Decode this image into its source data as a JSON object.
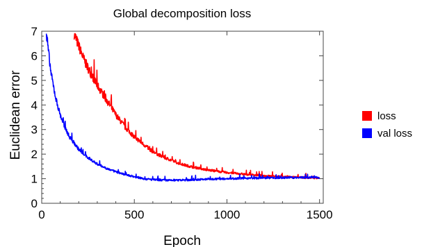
{
  "chart_data": {
    "type": "line",
    "title": "Global decomposition loss",
    "xlabel": "Epoch",
    "ylabel": "Euclidean error",
    "xlim": [
      0,
      1520
    ],
    "ylim": [
      0,
      7
    ],
    "xticks": [
      0,
      500,
      1000,
      1500
    ],
    "yticks": [
      0,
      1,
      2,
      3,
      4,
      5,
      6,
      7
    ],
    "grid": false,
    "legend_position": "right",
    "series": [
      {
        "name": "loss",
        "color": "#ff0000",
        "x": [
          175,
          200,
          225,
          250,
          300,
          350,
          400,
          450,
          500,
          550,
          600,
          650,
          700,
          750,
          800,
          900,
          1000,
          1100,
          1200,
          1300,
          1400,
          1500
        ],
        "y": [
          6.9,
          6.4,
          5.9,
          5.5,
          4.8,
          4.2,
          3.6,
          3.1,
          2.7,
          2.4,
          2.1,
          1.9,
          1.75,
          1.6,
          1.5,
          1.35,
          1.25,
          1.18,
          1.12,
          1.08,
          1.05,
          1.03
        ]
      },
      {
        "name": "val loss",
        "color": "#0000ff",
        "x": [
          25,
          50,
          75,
          100,
          125,
          150,
          200,
          250,
          300,
          350,
          400,
          450,
          500,
          550,
          600,
          700,
          800,
          900,
          1000,
          1100,
          1200,
          1300,
          1400,
          1500
        ],
        "y": [
          6.9,
          5.3,
          4.3,
          3.6,
          3.1,
          2.7,
          2.2,
          1.85,
          1.6,
          1.42,
          1.28,
          1.17,
          1.08,
          1.0,
          0.96,
          0.93,
          0.95,
          0.98,
          1.0,
          1.02,
          1.03,
          1.04,
          1.05,
          1.05
        ]
      }
    ]
  }
}
